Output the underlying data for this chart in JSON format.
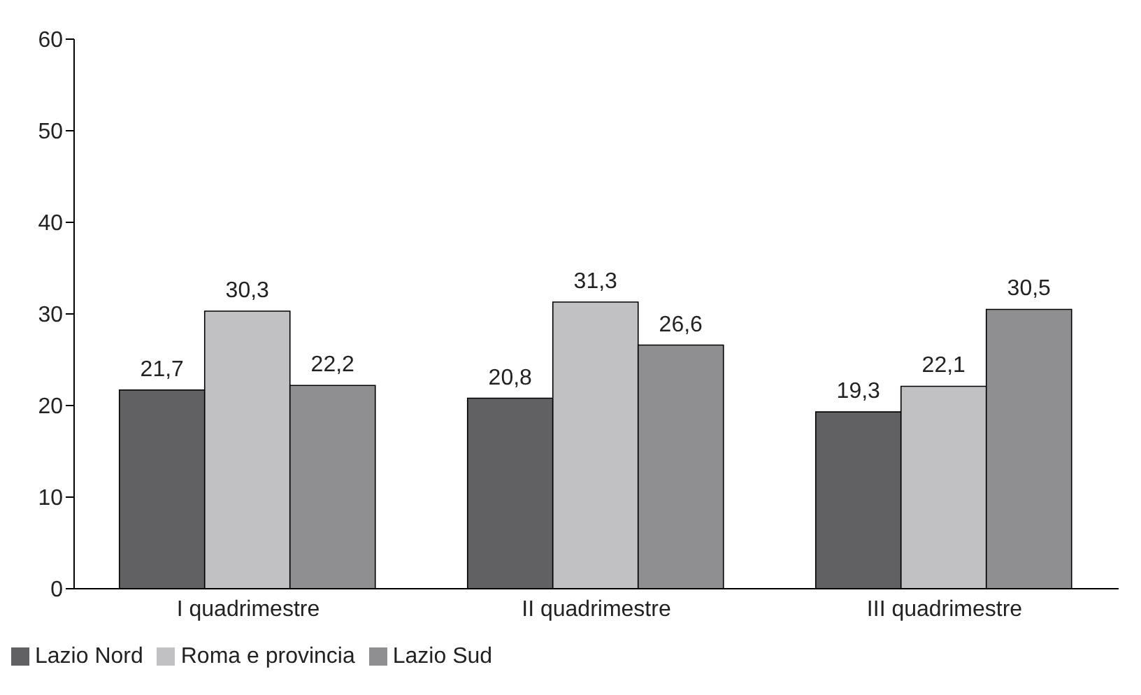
{
  "chart_data": {
    "type": "bar",
    "categories": [
      "I quadrimestre",
      "II quadrimestre",
      "III quadrimestre"
    ],
    "series": [
      {
        "name": "Lazio Nord",
        "color": "#616163",
        "values": [
          21.7,
          20.8,
          19.3
        ],
        "value_labels": [
          "21,7",
          "20,8",
          "19,3"
        ]
      },
      {
        "name": "Roma e provincia",
        "color": "#c1c1c3",
        "values": [
          30.3,
          31.3,
          22.1
        ],
        "value_labels": [
          "30,3",
          "31,3",
          "22,1"
        ]
      },
      {
        "name": "Lazio Sud",
        "color": "#8f8f91",
        "values": [
          22.2,
          26.6,
          30.5
        ],
        "value_labels": [
          "22,2",
          "26,6",
          "30,5"
        ]
      }
    ],
    "ylim": [
      0,
      60
    ],
    "yticks": [
      0,
      10,
      20,
      30,
      40,
      50,
      60
    ],
    "grid": false,
    "legend": "bottom left"
  }
}
